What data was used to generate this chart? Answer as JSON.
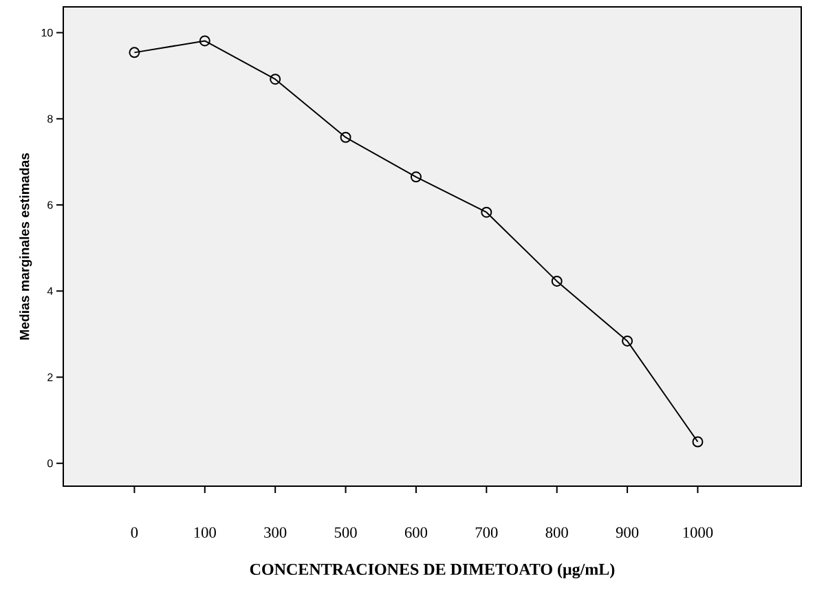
{
  "chart_data": {
    "type": "line",
    "xlabel": "CONCENTRACIONES DE DIMETOATO  (μg/mL)",
    "ylabel": "Medias marginales estimadas",
    "categories": [
      "0",
      "100",
      "300",
      "500",
      "600",
      "700",
      "800",
      "900",
      "1000"
    ],
    "values": [
      9.54,
      9.81,
      8.92,
      7.57,
      6.65,
      5.83,
      4.23,
      2.84,
      0.5
    ],
    "color": "#000000",
    "marker": "circle",
    "line_style": "solid",
    "ylim": [
      -0.53,
      10.6
    ],
    "yticks": [
      0,
      2,
      4,
      6,
      8,
      10
    ]
  }
}
